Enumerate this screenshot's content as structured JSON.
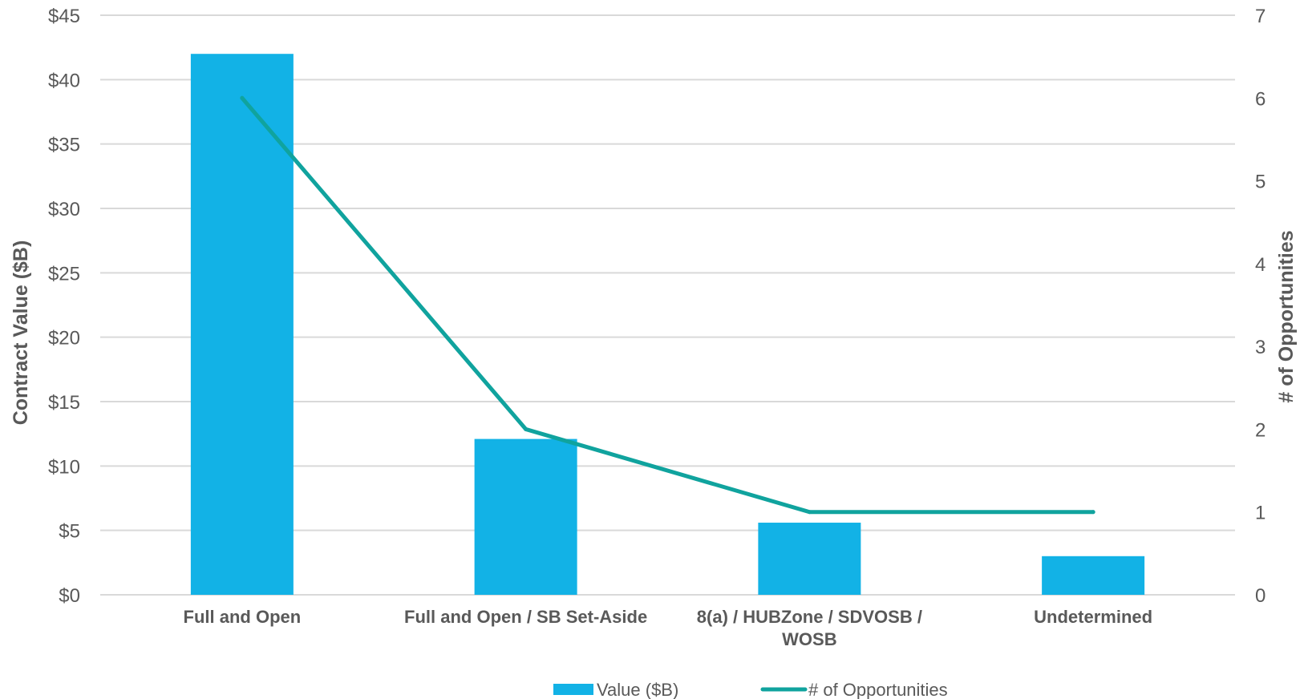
{
  "chart_data": {
    "type": "bar",
    "categories": [
      [
        "Full and Open"
      ],
      [
        "Full and Open / SB Set-Aside"
      ],
      [
        "8(a) / HUBZone / SDVOSB /",
        "WOSB"
      ],
      [
        "Undetermined"
      ]
    ],
    "series": [
      {
        "name": "Value ($B)",
        "type": "bar",
        "axis": "left",
        "values": [
          42,
          12.1,
          5.6,
          3.0
        ],
        "color": "#12B2E6"
      },
      {
        "name": "# of Opportunities",
        "type": "line",
        "axis": "right",
        "values": [
          6,
          2,
          1,
          1
        ],
        "color": "#10A39E"
      }
    ],
    "ylabel": "Contract Value ($B)",
    "y2label": "# of Opportunities",
    "ylim": [
      0,
      45
    ],
    "y2lim": [
      0,
      7
    ],
    "yticks": [
      "$0",
      "$5",
      "$10",
      "$15",
      "$20",
      "$25",
      "$30",
      "$35",
      "$40",
      "$45"
    ],
    "yticks_values": [
      0,
      5,
      10,
      15,
      20,
      25,
      30,
      35,
      40,
      45
    ],
    "y2ticks": [
      "0",
      "1",
      "2",
      "3",
      "4",
      "5",
      "6",
      "7"
    ],
    "y2ticks_values": [
      0,
      1,
      2,
      3,
      4,
      5,
      6,
      7
    ],
    "grid": true,
    "legend": "bottom",
    "gridColor": "#D9D9D9"
  }
}
